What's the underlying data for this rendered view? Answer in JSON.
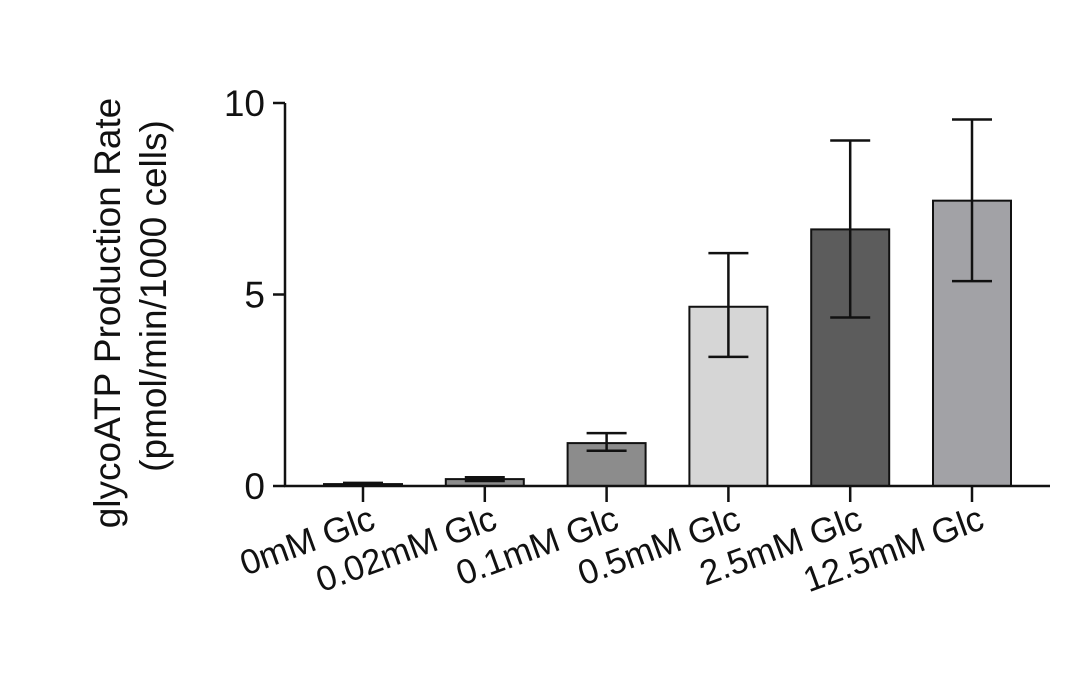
{
  "chart_data": {
    "type": "bar",
    "title": "",
    "xlabel": "",
    "ylabel_lines": [
      "glycoATP Production Rate",
      "(pmol/min/1000 cells)"
    ],
    "categories": [
      "0mM Glc",
      "0.02mM Glc",
      "0.1mM Glc",
      "0.5mM Glc",
      "2.5mM Glc",
      "12.5mM Glc"
    ],
    "values": [
      0.05,
      0.18,
      1.12,
      4.68,
      6.7,
      7.45
    ],
    "error_low": [
      0.03,
      0.13,
      0.92,
      3.37,
      4.4,
      5.35
    ],
    "error_high": [
      0.08,
      0.23,
      1.38,
      6.08,
      9.02,
      9.57
    ],
    "bar_colors": [
      "#8c8c8c",
      "#8c8c8c",
      "#8c8c8c",
      "#d6d6d6",
      "#5c5c5c",
      "#a2a2a6"
    ],
    "ylim": [
      0,
      10
    ],
    "yticks": [
      0,
      5,
      10
    ],
    "grid": false,
    "legend": "none"
  }
}
